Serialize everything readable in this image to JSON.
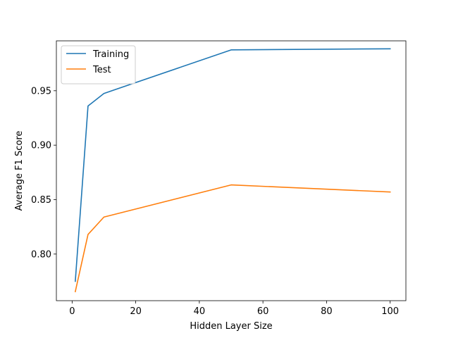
{
  "chart_data": {
    "type": "line",
    "title": "",
    "xlabel": "Hidden Layer Size",
    "ylabel": "Average F1 Score",
    "xlim": [
      -4.95,
      104.95
    ],
    "ylim": [
      0.7572,
      0.9958
    ],
    "xticks": [
      0,
      20,
      40,
      60,
      80,
      100
    ],
    "yticks": [
      0.8,
      0.85,
      0.9,
      0.95
    ],
    "xtick_labels": [
      "0",
      "20",
      "40",
      "60",
      "80",
      "100"
    ],
    "ytick_labels": [
      "0.80",
      "0.85",
      "0.90",
      "0.95"
    ],
    "grid": false,
    "legend_position": "top-left",
    "series": [
      {
        "name": "Training",
        "color": "#1f77b4",
        "x": [
          1,
          5,
          10,
          50,
          100
        ],
        "y": [
          0.775,
          0.936,
          0.9475,
          0.9875,
          0.9885
        ]
      },
      {
        "name": "Test",
        "color": "#ff7f0e",
        "x": [
          1,
          5,
          10,
          50,
          100
        ],
        "y": [
          0.7655,
          0.818,
          0.834,
          0.8635,
          0.857
        ]
      }
    ]
  }
}
